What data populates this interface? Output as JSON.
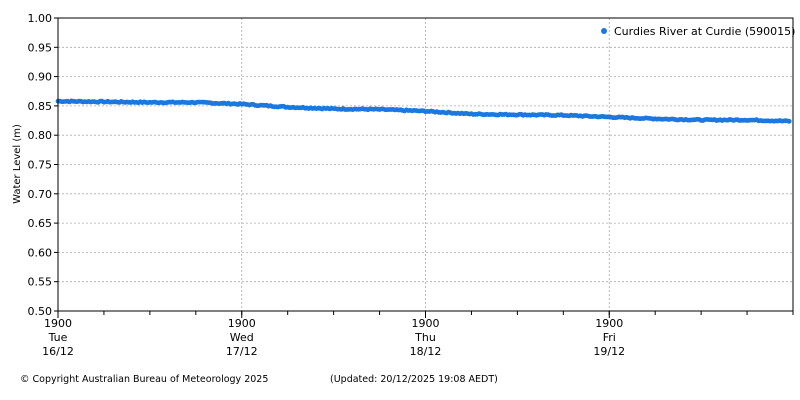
{
  "chart_data": {
    "type": "scatter",
    "ylabel": "Water Level (m)",
    "xlabel": "",
    "ylim": [
      0.5,
      1.0
    ],
    "yticks": [
      "1.00",
      "0.95",
      "0.90",
      "0.85",
      "0.80",
      "0.75",
      "0.70",
      "0.65",
      "0.60",
      "0.55",
      "0.50"
    ],
    "xlim_hours": [
      0,
      96
    ],
    "xticks": [
      {
        "time": "1900",
        "day": "Tue",
        "date": "16/12"
      },
      {
        "time": "1900",
        "day": "Wed",
        "date": "17/12"
      },
      {
        "time": "1900",
        "day": "Thu",
        "date": "18/12"
      },
      {
        "time": "1900",
        "day": "Fri",
        "date": "19/12"
      }
    ],
    "grid": true,
    "legend_position": "top-right",
    "series": [
      {
        "name": "Curdies River at Curdie (590015)",
        "color": "#1a78e0",
        "x_hours": [
          0,
          6,
          12,
          18,
          24,
          30,
          36,
          42,
          48,
          54,
          60,
          66,
          72,
          78,
          84,
          90,
          95.5
        ],
        "values": [
          0.858,
          0.857,
          0.856,
          0.856,
          0.853,
          0.848,
          0.845,
          0.844,
          0.841,
          0.836,
          0.835,
          0.834,
          0.831,
          0.828,
          0.826,
          0.826,
          0.824
        ]
      }
    ]
  },
  "footer": {
    "copyright": "© Copyright Australian Bureau of Meteorology 2025",
    "updated": "(Updated: 20/12/2025 19:08 AEDT)"
  }
}
